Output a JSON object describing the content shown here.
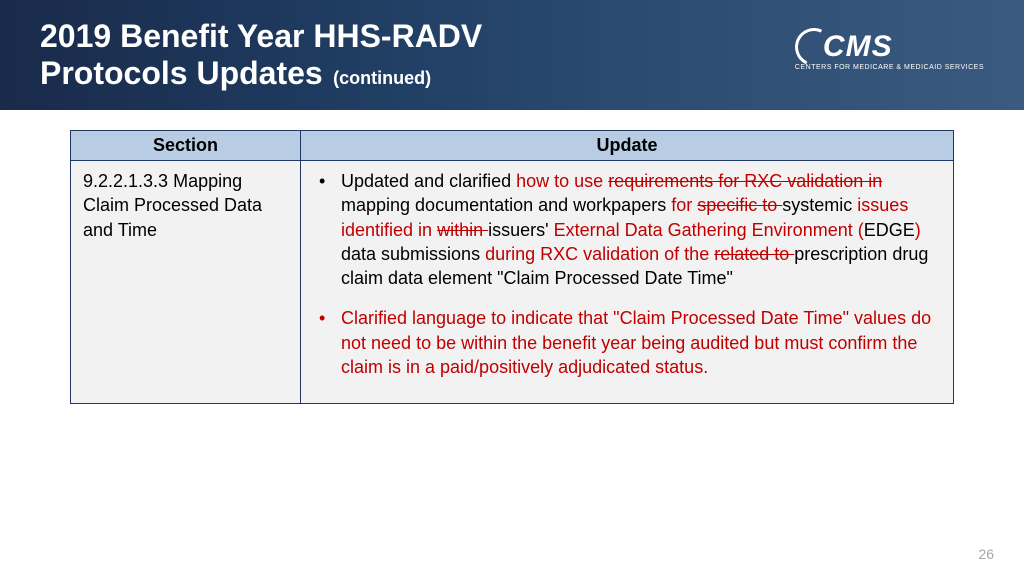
{
  "header": {
    "title_line1": "2019 Benefit Year HHS-RADV",
    "title_line2": "Protocols Updates",
    "continued": "(continued)",
    "logo_text": "CMS",
    "logo_tagline": "CENTERS FOR MEDICARE & MEDICAID SERVICES"
  },
  "table": {
    "col_section": "Section",
    "col_update": "Update",
    "section_text": "9.2.2.1.3.3  Mapping Claim Processed Data and Time",
    "b1": {
      "t1": "Updated and clarified ",
      "r1": "how to use ",
      "rs1": "requirements for RXC validation in ",
      "t2": "mapping documentation and workpapers ",
      "r2": "for ",
      "rs2": "specific to ",
      "t3": "systemic ",
      "r3": "issues identified in ",
      "rs3": "within ",
      "t4": "issuers' ",
      "r4": "External Data Gathering Environment (",
      "t5": "EDGE",
      "r5": ") ",
      "t6": "data submissions ",
      "r6": "during RXC validation of the ",
      "rs4": "related to ",
      "t7": "prescription drug claim data element \"Claim Processed Date Time\""
    },
    "b2": "Clarified language to indicate that \"Claim Processed Date Time\" values do not need to be within the benefit year being audited but must confirm the claim is in a paid/positively adjudicated status."
  },
  "page_number": "26"
}
